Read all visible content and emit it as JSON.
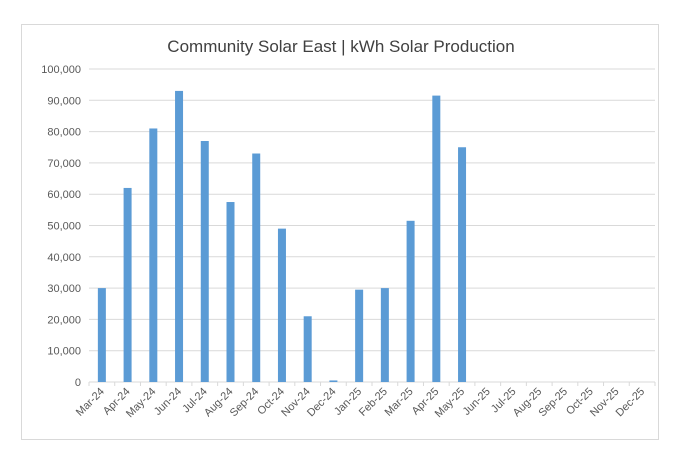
{
  "chart_data": {
    "type": "bar",
    "title": "Community Solar East | kWh Solar Production",
    "xlabel": "",
    "ylabel": "",
    "ylim": [
      0,
      100000
    ],
    "yticks": [
      "0",
      "10,000",
      "20,000",
      "30,000",
      "40,000",
      "50,000",
      "60,000",
      "70,000",
      "80,000",
      "90,000",
      "100,000"
    ],
    "categories": [
      "Mar-24",
      "Apr-24",
      "May-24",
      "Jun-24",
      "Jul-24",
      "Aug-24",
      "Sep-24",
      "Oct-24",
      "Nov-24",
      "Dec-24",
      "Jan-25",
      "Feb-25",
      "Mar-25",
      "Apr-25",
      "May-25",
      "Jun-25",
      "Jul-25",
      "Aug-25",
      "Sep-25",
      "Oct-25",
      "Nov-25",
      "Dec-25"
    ],
    "values": [
      30000,
      62000,
      81000,
      93000,
      77000,
      57500,
      73000,
      49000,
      21000,
      500,
      29500,
      30000,
      51500,
      91500,
      75000,
      null,
      null,
      null,
      null,
      null,
      null,
      null
    ],
    "grid": true,
    "legend": "none",
    "bar_color": "#5b9bd5",
    "grid_color": "#d9d9d9",
    "text_color": "#595959"
  }
}
